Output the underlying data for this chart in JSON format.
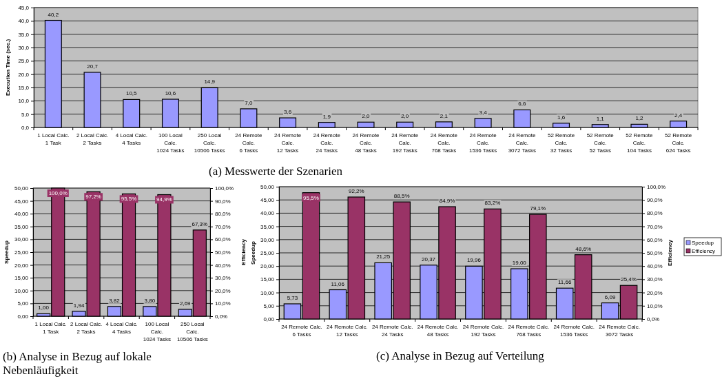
{
  "chart_data": [
    {
      "type": "bar",
      "title": "(a) Messwerte der Szenarien",
      "ylabel": "Execution Time (sec.)",
      "categories": [
        "1 Local Calc.\n1 Task",
        "2 Local Calc.\n2 Tasks",
        "4 Local Calc.\n4 Tasks",
        "100 Local\nCalc.\n1024 Tasks",
        "250 Local\nCalc.\n10506 Tasks",
        "24 Remote\nCalc.\n6 Tasks",
        "24 Remote\nCalc.\n12 Tasks",
        "24 Remote\nCalc.\n24 Tasks",
        "24 Remote\nCalc.\n48 Tasks",
        "24 Remote\nCalc.\n192 Tasks",
        "24 Remote\nCalc.\n768 Tasks",
        "24 Remote\nCalc.\n1536 Tasks",
        "24 Remote\nCalc.\n3072 Tasks",
        "52 Remote\nCalc.\n32 Tasks",
        "52 Remote\nCalc.\n52 Tasks",
        "52 Remote\nCalc.\n104 Tasks",
        "52 Remote\nCalc.\n624 Tasks"
      ],
      "series": [
        {
          "color": "#9999ff",
          "values": [
            40.2,
            20.7,
            10.5,
            10.6,
            14.9,
            7.0,
            3.6,
            1.9,
            2.0,
            2.0,
            2.1,
            3.4,
            6.6,
            1.6,
            1.1,
            1.2,
            2.4
          ],
          "value_labels": [
            "40,2",
            "20,7",
            "10,5",
            "10,6",
            "14,9",
            "7,0",
            "3,6",
            "1,9",
            "2,0",
            "2,0",
            "2,1",
            "3,4",
            "6,6",
            "1,6",
            "1,1",
            "1,2",
            "2,4"
          ]
        }
      ],
      "ylim": [
        0,
        45
      ],
      "yticks": [
        {
          "value": 0,
          "label": "0,0"
        },
        {
          "value": 5,
          "label": "5,0"
        },
        {
          "value": 10,
          "label": "10,0"
        },
        {
          "value": 15,
          "label": "15,0"
        },
        {
          "value": 20,
          "label": "20,0"
        },
        {
          "value": 25,
          "label": "25,0"
        },
        {
          "value": 30,
          "label": "30,0"
        },
        {
          "value": 35,
          "label": "35,0"
        },
        {
          "value": 40,
          "label": "40,0"
        },
        {
          "value": 45,
          "label": "45,0"
        }
      ],
      "grid": "y"
    },
    {
      "type": "bar",
      "title": "(b) Analyse in Bezug auf lokale Nebenläufigkeit",
      "ylabel": "Speedup",
      "y2label": "Efficiency",
      "categories": [
        "1 Local Calc.\n1 Task",
        "2 Local Calc.\n2 Tasks",
        "4 Local Calc.\n4 Tasks",
        "100 Local\nCalc.\n1024 Tasks",
        "250 Local\nCalc.\n10506 Tasks"
      ],
      "series": [
        {
          "color": "#9999ff",
          "values": [
            1.0,
            1.94,
            3.82,
            3.8,
            2.69
          ],
          "value_labels": [
            "1,00",
            "1,94",
            "3,82",
            "3,80",
            "2,69"
          ]
        },
        {
          "color": "#993366",
          "axis": "y2",
          "values": [
            100.0,
            97.2,
            95.5,
            94.9,
            67.3
          ],
          "value_labels": [
            "100,0%",
            "97,2%",
            "95,5%",
            "94,9%",
            "67,3%"
          ]
        }
      ],
      "ylim": [
        0,
        50
      ],
      "yticks": [
        {
          "value": 0,
          "label": "0,00"
        },
        {
          "value": 5,
          "label": "5,00"
        },
        {
          "value": 10,
          "label": "10,00"
        },
        {
          "value": 15,
          "label": "15,00"
        },
        {
          "value": 20,
          "label": "20,00"
        },
        {
          "value": 25,
          "label": "25,00"
        },
        {
          "value": 30,
          "label": "30,00"
        },
        {
          "value": 35,
          "label": "35,00"
        },
        {
          "value": 40,
          "label": "40,00"
        },
        {
          "value": 45,
          "label": "45,00"
        },
        {
          "value": 50,
          "label": "50,00"
        }
      ],
      "y2lim": [
        0,
        100
      ],
      "y2ticks": [
        {
          "value": 0,
          "label": "0,0%"
        },
        {
          "value": 10,
          "label": "10,0%"
        },
        {
          "value": 20,
          "label": "20,0%"
        },
        {
          "value": 30,
          "label": "30,0%"
        },
        {
          "value": 40,
          "label": "40,0%"
        },
        {
          "value": 50,
          "label": "50,0%"
        },
        {
          "value": 60,
          "label": "60,0%"
        },
        {
          "value": 70,
          "label": "70,0%"
        },
        {
          "value": 80,
          "label": "80,0%"
        },
        {
          "value": 90,
          "label": "90,0%"
        },
        {
          "value": 100,
          "label": "100,0%"
        }
      ],
      "grid": "y"
    },
    {
      "type": "bar",
      "title": "(c) Analyse in Bezug auf Verteilung",
      "ylabel": "Speedup",
      "y2label": "Efficiency",
      "categories": [
        "24 Remote Calc.\n6 Tasks",
        "24 Remote Calc.\n12 Tasks",
        "24 Remote Calc.\n24 Tasks",
        "24 Remote Calc.\n48 Tasks",
        "24 Remote Calc.\n192 Tasks",
        "24 Remote Calc.\n768 Tasks",
        "24 Remote Calc.\n1536 Tasks",
        "24 Remote Calc.\n3072 Tasks"
      ],
      "series": [
        {
          "name": "Speedup",
          "color": "#9999ff",
          "values": [
            5.73,
            11.06,
            21.25,
            20.37,
            19.96,
            19.0,
            11.66,
            6.09
          ],
          "value_labels": [
            "5,73",
            "11,06",
            "21,25",
            "20,37",
            "19,96",
            "19,00",
            "11,66",
            "6,09"
          ]
        },
        {
          "name": "Efficiency",
          "color": "#993366",
          "axis": "y2",
          "values": [
            95.5,
            92.2,
            88.5,
            84.9,
            83.2,
            79.1,
            48.6,
            25.4
          ],
          "value_labels": [
            "95,5%",
            "92,2%",
            "88,5%",
            "84,9%",
            "83,2%",
            "79,1%",
            "48,6%",
            "25,4%"
          ]
        }
      ],
      "ylim": [
        0,
        50
      ],
      "yticks": [
        {
          "value": 0,
          "label": "0,00"
        },
        {
          "value": 5,
          "label": "5,00"
        },
        {
          "value": 10,
          "label": "10,00"
        },
        {
          "value": 15,
          "label": "15,00"
        },
        {
          "value": 20,
          "label": "20,00"
        },
        {
          "value": 25,
          "label": "25,00"
        },
        {
          "value": 30,
          "label": "30,00"
        },
        {
          "value": 35,
          "label": "35,00"
        },
        {
          "value": 40,
          "label": "40,00"
        },
        {
          "value": 45,
          "label": "45,00"
        },
        {
          "value": 50,
          "label": "50,00"
        }
      ],
      "y2lim": [
        0,
        100
      ],
      "y2ticks": [
        {
          "value": 0,
          "label": "0,0%"
        },
        {
          "value": 10,
          "label": "10,0%"
        },
        {
          "value": 20,
          "label": "20,0%"
        },
        {
          "value": 30,
          "label": "30,0%"
        },
        {
          "value": 40,
          "label": "40,0%"
        },
        {
          "value": 50,
          "label": "50,0%"
        },
        {
          "value": 60,
          "label": "60,0%"
        },
        {
          "value": 70,
          "label": "70,0%"
        },
        {
          "value": 80,
          "label": "80,0%"
        },
        {
          "value": 90,
          "label": "90,0%"
        },
        {
          "value": 100,
          "label": "100,0%"
        }
      ],
      "grid": "y",
      "legend": "right"
    }
  ]
}
